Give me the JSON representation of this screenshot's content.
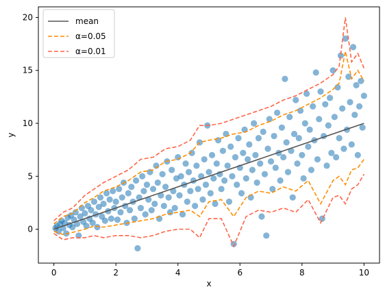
{
  "chart_data": {
    "type": "scatter",
    "title": "",
    "xlabel": "x",
    "ylabel": "y",
    "xlim": [
      -0.5,
      10.5
    ],
    "ylim": [
      -3.2,
      21.0
    ],
    "xticks": [
      0,
      2,
      4,
      6,
      8,
      10
    ],
    "yticks": [
      0,
      5,
      10,
      15,
      20
    ],
    "grid": false,
    "legend_position": "top-left",
    "colors": {
      "points": "#1f77b4",
      "mean": "#555555",
      "alpha_005": "#ff8c00",
      "alpha_001": "#ff6347"
    },
    "series": [
      {
        "name": "mean",
        "style": "solid",
        "x": [
          0,
          10
        ],
        "y": [
          0,
          10
        ]
      },
      {
        "name": "α=0.05",
        "style": "dashed",
        "upper": [
          [
            0.0,
            0.5
          ],
          [
            0.3,
            1.2
          ],
          [
            0.6,
            1.5
          ],
          [
            1.0,
            2.5
          ],
          [
            1.3,
            3.0
          ],
          [
            1.6,
            3.6
          ],
          [
            2.0,
            4.0
          ],
          [
            2.4,
            4.6
          ],
          [
            2.8,
            5.4
          ],
          [
            3.2,
            5.6
          ],
          [
            3.6,
            6.4
          ],
          [
            4.0,
            6.6
          ],
          [
            4.4,
            7.2
          ],
          [
            4.7,
            8.2
          ],
          [
            5.0,
            8.4
          ],
          [
            5.4,
            8.6
          ],
          [
            5.8,
            9.0
          ],
          [
            6.2,
            9.2
          ],
          [
            6.6,
            9.8
          ],
          [
            7.0,
            10.2
          ],
          [
            7.4,
            10.8
          ],
          [
            7.8,
            11.2
          ],
          [
            8.2,
            11.8
          ],
          [
            8.6,
            12.4
          ],
          [
            9.0,
            13.2
          ],
          [
            9.2,
            13.8
          ],
          [
            9.4,
            16.8
          ],
          [
            9.6,
            14.2
          ],
          [
            9.8,
            15.0
          ],
          [
            10.0,
            14.0
          ]
        ],
        "lower": [
          [
            0.0,
            -0.2
          ],
          [
            0.3,
            -0.5
          ],
          [
            0.6,
            -0.3
          ],
          [
            1.0,
            0.0
          ],
          [
            1.3,
            0.3
          ],
          [
            1.6,
            0.2
          ],
          [
            2.0,
            0.4
          ],
          [
            2.4,
            0.6
          ],
          [
            2.8,
            0.8
          ],
          [
            3.2,
            1.0
          ],
          [
            3.6,
            1.4
          ],
          [
            4.0,
            1.6
          ],
          [
            4.4,
            1.8
          ],
          [
            4.7,
            1.2
          ],
          [
            5.0,
            2.6
          ],
          [
            5.4,
            2.8
          ],
          [
            5.8,
            1.2
          ],
          [
            6.2,
            3.0
          ],
          [
            6.6,
            3.6
          ],
          [
            7.0,
            3.4
          ],
          [
            7.4,
            4.0
          ],
          [
            7.8,
            3.6
          ],
          [
            8.2,
            4.6
          ],
          [
            8.6,
            2.4
          ],
          [
            9.0,
            4.6
          ],
          [
            9.2,
            5.0
          ],
          [
            9.4,
            4.2
          ],
          [
            9.6,
            5.6
          ],
          [
            9.8,
            5.8
          ],
          [
            10.0,
            6.6
          ]
        ]
      },
      {
        "name": "α=0.01",
        "style": "dashed",
        "upper": [
          [
            0.0,
            0.8
          ],
          [
            0.3,
            1.6
          ],
          [
            0.6,
            2.0
          ],
          [
            1.0,
            3.2
          ],
          [
            1.3,
            3.8
          ],
          [
            1.6,
            4.4
          ],
          [
            2.0,
            5.0
          ],
          [
            2.4,
            5.6
          ],
          [
            2.8,
            6.6
          ],
          [
            3.2,
            6.8
          ],
          [
            3.6,
            7.6
          ],
          [
            4.0,
            7.8
          ],
          [
            4.4,
            8.4
          ],
          [
            4.7,
            9.8
          ],
          [
            5.0,
            9.8
          ],
          [
            5.4,
            10.0
          ],
          [
            5.8,
            10.4
          ],
          [
            6.2,
            10.8
          ],
          [
            6.6,
            11.2
          ],
          [
            7.0,
            11.6
          ],
          [
            7.4,
            12.2
          ],
          [
            7.8,
            12.6
          ],
          [
            8.2,
            13.2
          ],
          [
            8.6,
            13.8
          ],
          [
            9.0,
            14.6
          ],
          [
            9.2,
            15.4
          ],
          [
            9.4,
            20.0
          ],
          [
            9.6,
            15.8
          ],
          [
            9.8,
            16.6
          ],
          [
            10.0,
            15.2
          ]
        ],
        "lower": [
          [
            0.0,
            -0.4
          ],
          [
            0.3,
            -1.0
          ],
          [
            0.6,
            -0.8
          ],
          [
            1.0,
            -0.8
          ],
          [
            1.3,
            -0.6
          ],
          [
            1.6,
            -0.8
          ],
          [
            2.0,
            -0.6
          ],
          [
            2.4,
            -0.6
          ],
          [
            2.8,
            -0.8
          ],
          [
            3.2,
            -0.6
          ],
          [
            3.6,
            -0.2
          ],
          [
            4.0,
            0.0
          ],
          [
            4.4,
            0.0
          ],
          [
            4.7,
            -0.8
          ],
          [
            5.0,
            1.0
          ],
          [
            5.4,
            1.0
          ],
          [
            5.8,
            -1.6
          ],
          [
            6.2,
            1.2
          ],
          [
            6.6,
            1.8
          ],
          [
            7.0,
            1.6
          ],
          [
            7.4,
            2.0
          ],
          [
            7.8,
            1.6
          ],
          [
            8.2,
            2.8
          ],
          [
            8.6,
            0.6
          ],
          [
            9.0,
            3.0
          ],
          [
            9.2,
            3.2
          ],
          [
            9.4,
            2.4
          ],
          [
            9.6,
            3.8
          ],
          [
            9.8,
            4.2
          ],
          [
            10.0,
            5.2
          ]
        ]
      }
    ],
    "points": [
      [
        0.05,
        0.1
      ],
      [
        0.1,
        0.3
      ],
      [
        0.15,
        -0.2
      ],
      [
        0.2,
        0.5
      ],
      [
        0.25,
        0.8
      ],
      [
        0.3,
        0.1
      ],
      [
        0.35,
        0.6
      ],
      [
        0.4,
        -0.4
      ],
      [
        0.45,
        1.1
      ],
      [
        0.5,
        0.4
      ],
      [
        0.55,
        1.3
      ],
      [
        0.6,
        0.2
      ],
      [
        0.65,
        0.9
      ],
      [
        0.7,
        1.6
      ],
      [
        0.75,
        0.5
      ],
      [
        0.8,
        -0.6
      ],
      [
        0.85,
        1.2
      ],
      [
        0.9,
        2.0
      ],
      [
        0.95,
        0.7
      ],
      [
        1.0,
        1.5
      ],
      [
        1.05,
        0.3
      ],
      [
        1.1,
        2.2
      ],
      [
        1.15,
        1.0
      ],
      [
        1.2,
        1.8
      ],
      [
        1.25,
        0.6
      ],
      [
        1.3,
        2.6
      ],
      [
        1.35,
        1.4
      ],
      [
        1.4,
        0.2
      ],
      [
        1.45,
        2.1
      ],
      [
        1.5,
        3.0
      ],
      [
        1.55,
        1.2
      ],
      [
        1.6,
        2.4
      ],
      [
        1.65,
        0.8
      ],
      [
        1.7,
        3.4
      ],
      [
        1.75,
        1.7
      ],
      [
        1.8,
        2.8
      ],
      [
        1.85,
        1.0
      ],
      [
        1.9,
        3.6
      ],
      [
        1.95,
        2.0
      ],
      [
        2.0,
        2.6
      ],
      [
        2.05,
        0.9
      ],
      [
        2.1,
        3.8
      ],
      [
        2.15,
        1.6
      ],
      [
        2.2,
        3.0
      ],
      [
        2.25,
        4.4
      ],
      [
        2.3,
        2.2
      ],
      [
        2.35,
        0.6
      ],
      [
        2.4,
        3.4
      ],
      [
        2.45,
        1.8
      ],
      [
        2.5,
        4.0
      ],
      [
        2.55,
        2.6
      ],
      [
        2.6,
        1.0
      ],
      [
        2.65,
        4.6
      ],
      [
        2.7,
        -1.8
      ],
      [
        2.75,
        3.0
      ],
      [
        2.8,
        2.0
      ],
      [
        2.85,
        5.0
      ],
      [
        2.9,
        3.6
      ],
      [
        2.95,
        1.4
      ],
      [
        3.0,
        4.2
      ],
      [
        3.05,
        2.8
      ],
      [
        3.1,
        5.4
      ],
      [
        3.15,
        1.8
      ],
      [
        3.2,
        3.8
      ],
      [
        3.25,
        2.4
      ],
      [
        3.3,
        6.0
      ],
      [
        3.35,
        4.4
      ],
      [
        3.4,
        1.0
      ],
      [
        3.45,
        3.2
      ],
      [
        3.5,
        5.2
      ],
      [
        3.55,
        2.2
      ],
      [
        3.6,
        4.0
      ],
      [
        3.65,
        6.4
      ],
      [
        3.7,
        3.0
      ],
      [
        3.75,
        1.6
      ],
      [
        3.8,
        5.6
      ],
      [
        3.85,
        3.6
      ],
      [
        3.9,
        2.0
      ],
      [
        3.95,
        4.8
      ],
      [
        4.0,
        6.8
      ],
      [
        4.05,
        3.2
      ],
      [
        4.1,
        5.0
      ],
      [
        4.15,
        1.4
      ],
      [
        4.2,
        4.2
      ],
      [
        4.25,
        6.2
      ],
      [
        4.3,
        2.6
      ],
      [
        4.35,
        5.4
      ],
      [
        4.4,
        3.6
      ],
      [
        4.45,
        7.2
      ],
      [
        4.5,
        4.6
      ],
      [
        4.55,
        2.2
      ],
      [
        4.6,
        6.0
      ],
      [
        4.65,
        3.8
      ],
      [
        4.7,
        8.2
      ],
      [
        4.75,
        5.0
      ],
      [
        4.8,
        2.8
      ],
      [
        4.85,
        6.6
      ],
      [
        4.9,
        4.2
      ],
      [
        4.95,
        9.8
      ],
      [
        5.0,
        5.4
      ],
      [
        5.05,
        3.4
      ],
      [
        5.1,
        7.0
      ],
      [
        5.15,
        4.8
      ],
      [
        5.2,
        2.4
      ],
      [
        5.25,
        6.2
      ],
      [
        5.3,
        8.4
      ],
      [
        5.35,
        5.2
      ],
      [
        5.4,
        3.8
      ],
      [
        5.45,
        7.4
      ],
      [
        5.5,
        4.6
      ],
      [
        5.55,
        9.0
      ],
      [
        5.6,
        6.0
      ],
      [
        5.65,
        2.6
      ],
      [
        5.7,
        7.8
      ],
      [
        5.75,
        5.0
      ],
      [
        5.8,
        -1.4
      ],
      [
        5.85,
        6.8
      ],
      [
        5.9,
        4.2
      ],
      [
        5.95,
        8.6
      ],
      [
        6.0,
        5.8
      ],
      [
        6.05,
        3.4
      ],
      [
        6.1,
        7.2
      ],
      [
        6.15,
        9.4
      ],
      [
        6.2,
        4.8
      ],
      [
        6.25,
        6.6
      ],
      [
        6.3,
        8.0
      ],
      [
        6.35,
        3.0
      ],
      [
        6.4,
        5.6
      ],
      [
        6.45,
        10.0
      ],
      [
        6.5,
        7.0
      ],
      [
        6.55,
        4.4
      ],
      [
        6.6,
        8.6
      ],
      [
        6.65,
        6.2
      ],
      [
        6.7,
        1.2
      ],
      [
        6.75,
        9.2
      ],
      [
        6.8,
        5.2
      ],
      [
        6.85,
        -0.6
      ],
      [
        6.9,
        7.6
      ],
      [
        6.95,
        10.4
      ],
      [
        7.0,
        6.4
      ],
      [
        7.05,
        3.8
      ],
      [
        7.1,
        8.8
      ],
      [
        7.15,
        5.8
      ],
      [
        7.2,
        11.0
      ],
      [
        7.25,
        7.2
      ],
      [
        7.3,
        4.6
      ],
      [
        7.35,
        9.6
      ],
      [
        7.4,
        6.8
      ],
      [
        7.45,
        14.2
      ],
      [
        7.5,
        8.2
      ],
      [
        7.55,
        5.4
      ],
      [
        7.6,
        10.6
      ],
      [
        7.65,
        7.4
      ],
      [
        7.7,
        3.0
      ],
      [
        7.75,
        9.0
      ],
      [
        7.8,
        12.2
      ],
      [
        7.85,
        6.2
      ],
      [
        7.9,
        8.6
      ],
      [
        7.95,
        11.2
      ],
      [
        8.0,
        7.0
      ],
      [
        8.05,
        4.8
      ],
      [
        8.1,
        10.0
      ],
      [
        8.15,
        12.8
      ],
      [
        8.2,
        7.8
      ],
      [
        8.25,
        9.4
      ],
      [
        8.3,
        5.6
      ],
      [
        8.35,
        11.6
      ],
      [
        8.4,
        8.4
      ],
      [
        8.45,
        14.8
      ],
      [
        8.5,
        6.6
      ],
      [
        8.55,
        10.4
      ],
      [
        8.6,
        13.0
      ],
      [
        8.65,
        1.0
      ],
      [
        8.7,
        8.8
      ],
      [
        8.75,
        11.8
      ],
      [
        8.8,
        6.0
      ],
      [
        8.85,
        9.8
      ],
      [
        8.9,
        12.4
      ],
      [
        8.95,
        7.2
      ],
      [
        9.0,
        15.0
      ],
      [
        9.05,
        10.6
      ],
      [
        9.1,
        6.8
      ],
      [
        9.15,
        13.4
      ],
      [
        9.2,
        8.6
      ],
      [
        9.25,
        16.4
      ],
      [
        9.3,
        11.4
      ],
      [
        9.35,
        7.6
      ],
      [
        9.4,
        18.0
      ],
      [
        9.45,
        9.4
      ],
      [
        9.5,
        14.4
      ],
      [
        9.55,
        12.0
      ],
      [
        9.6,
        8.0
      ],
      [
        9.65,
        17.2
      ],
      [
        9.7,
        10.8
      ],
      [
        9.75,
        13.6
      ],
      [
        9.8,
        7.0
      ],
      [
        9.85,
        11.6
      ],
      [
        9.9,
        14.0
      ],
      [
        9.95,
        9.6
      ],
      [
        10.0,
        12.6
      ]
    ]
  },
  "legend": {
    "items": [
      {
        "label": "mean",
        "color": "#555555",
        "dash": "solid"
      },
      {
        "label": "α=0.05",
        "color": "#ff8c00",
        "dash": "dashed"
      },
      {
        "label": "α=0.01",
        "color": "#ff6347",
        "dash": "dashed"
      }
    ]
  }
}
